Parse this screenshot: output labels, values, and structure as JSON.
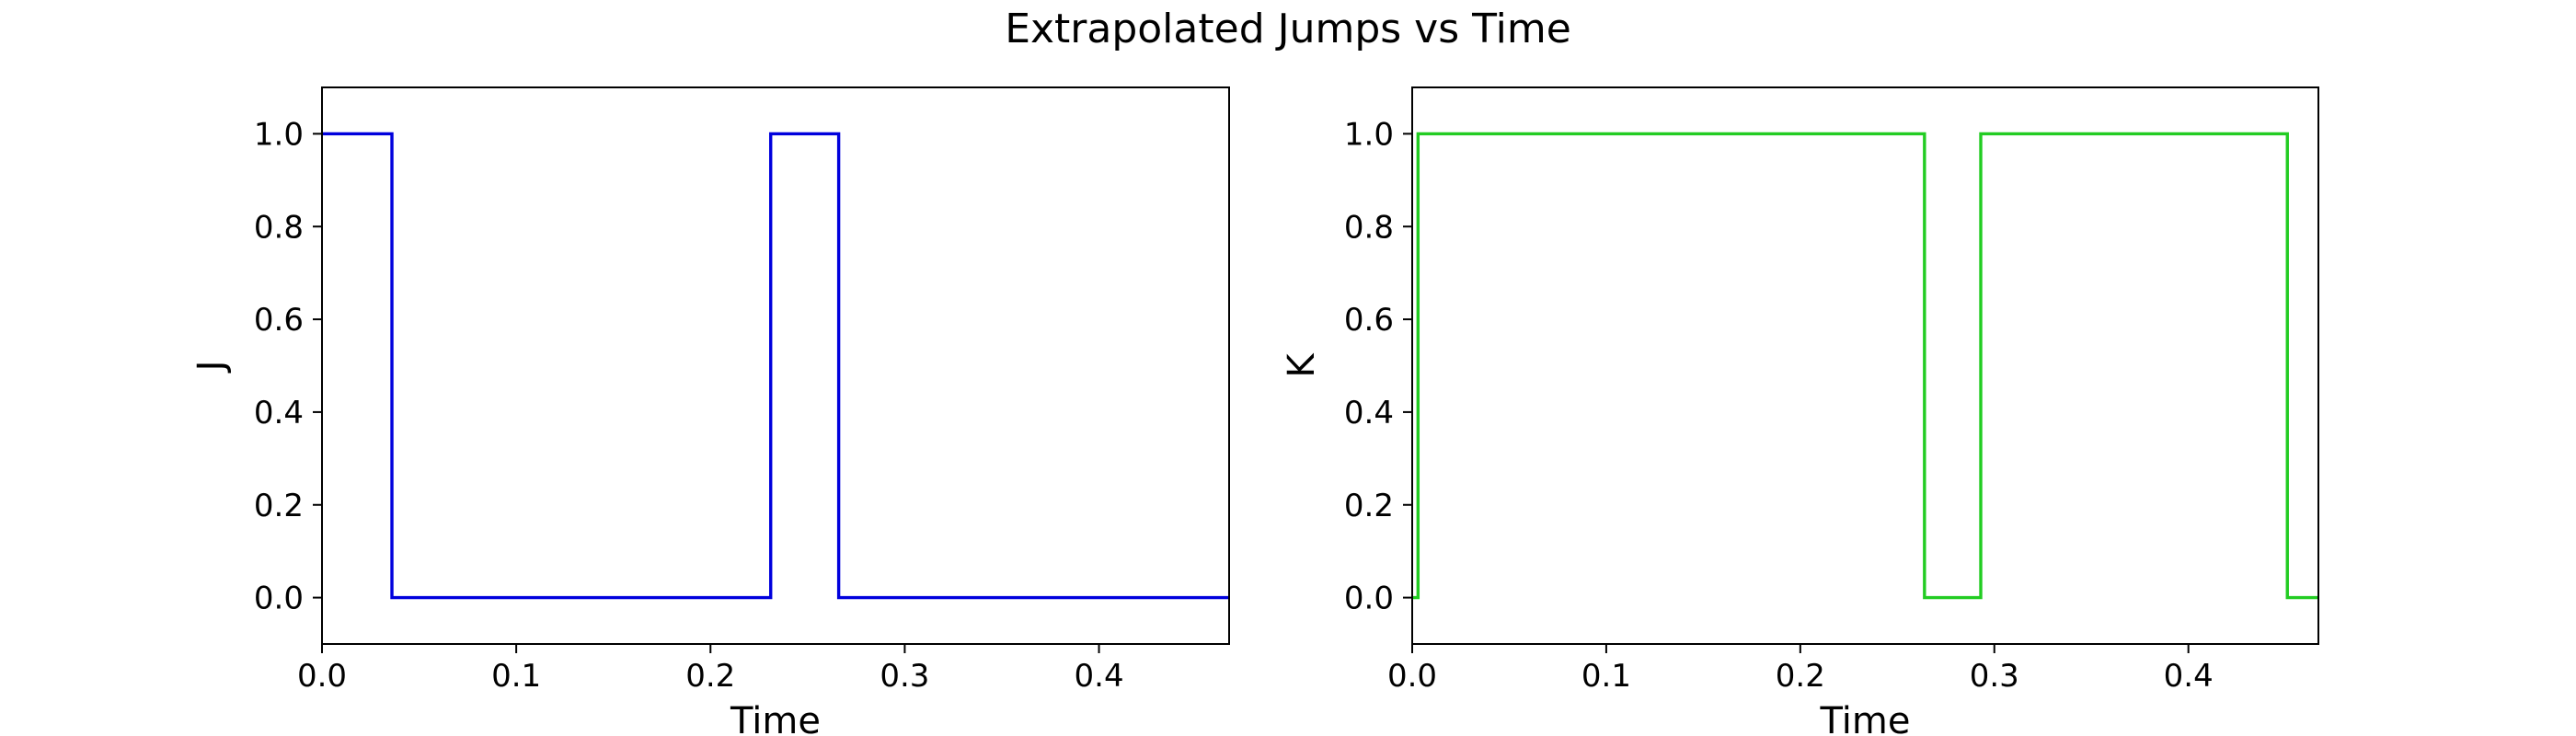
{
  "figure": {
    "title": "Extrapolated Jumps vs Time"
  },
  "chart_data": [
    {
      "type": "line",
      "step": true,
      "title": "",
      "xlabel": "Time",
      "ylabel": "J",
      "xlim": [
        0.0,
        0.467
      ],
      "ylim": [
        -0.1,
        1.1
      ],
      "xticks": [
        0.0,
        0.1,
        0.2,
        0.3,
        0.4
      ],
      "xtick_labels": [
        "0.0",
        "0.1",
        "0.2",
        "0.3",
        "0.4"
      ],
      "yticks": [
        0.0,
        0.2,
        0.4,
        0.6,
        0.8,
        1.0
      ],
      "ytick_labels": [
        "0.0",
        "0.2",
        "0.4",
        "0.6",
        "0.8",
        "1.0"
      ],
      "grid": false,
      "series": [
        {
          "color": "#0000dd",
          "x": [
            0.0,
            0.036,
            0.036,
            0.231,
            0.231,
            0.266,
            0.266,
            0.467
          ],
          "y": [
            1.0,
            1.0,
            0.0,
            0.0,
            1.0,
            1.0,
            0.0,
            0.0
          ]
        }
      ]
    },
    {
      "type": "line",
      "step": true,
      "title": "",
      "xlabel": "Time",
      "ylabel": "K",
      "xlim": [
        0.0,
        0.467
      ],
      "ylim": [
        -0.1,
        1.1
      ],
      "xticks": [
        0.0,
        0.1,
        0.2,
        0.3,
        0.4
      ],
      "xtick_labels": [
        "0.0",
        "0.1",
        "0.2",
        "0.3",
        "0.4"
      ],
      "yticks": [
        0.0,
        0.2,
        0.4,
        0.6,
        0.8,
        1.0
      ],
      "ytick_labels": [
        "0.0",
        "0.2",
        "0.4",
        "0.6",
        "0.8",
        "1.0"
      ],
      "grid": false,
      "series": [
        {
          "color": "#22cc22",
          "x": [
            0.0,
            0.003,
            0.003,
            0.264,
            0.264,
            0.293,
            0.293,
            0.451,
            0.451,
            0.467
          ],
          "y": [
            0.0,
            0.0,
            1.0,
            1.0,
            0.0,
            0.0,
            1.0,
            1.0,
            0.0,
            0.0
          ]
        }
      ]
    }
  ]
}
